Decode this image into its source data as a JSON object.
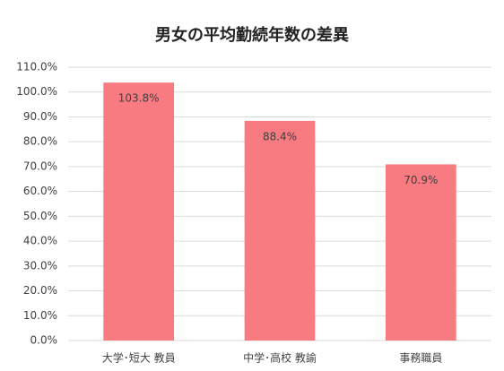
{
  "chart_data": {
    "type": "bar",
    "title": "男女の平均勤続年数の差異",
    "categories": [
      "大学･短大 教員",
      "中学･高校 教諭",
      "事務職員"
    ],
    "values": [
      103.8,
      88.4,
      70.9
    ],
    "value_labels": [
      "103.8%",
      "88.4%",
      "70.9%"
    ],
    "color": "#f77b80",
    "ylim": [
      0,
      110
    ],
    "yticks": [
      {
        "value": 0,
        "label": "0.0%"
      },
      {
        "value": 10,
        "label": "10.0%"
      },
      {
        "value": 20,
        "label": "20.0%"
      },
      {
        "value": 30,
        "label": "30.0%"
      },
      {
        "value": 40,
        "label": "40.0%"
      },
      {
        "value": 50,
        "label": "50.0%"
      },
      {
        "value": 60,
        "label": "60.0%"
      },
      {
        "value": 70,
        "label": "70.0%"
      },
      {
        "value": 80,
        "label": "80.0%"
      },
      {
        "value": 90,
        "label": "90.0%"
      },
      {
        "value": 100,
        "label": "100.0%"
      },
      {
        "value": 110,
        "label": "110.0%"
      }
    ],
    "grid": true
  }
}
